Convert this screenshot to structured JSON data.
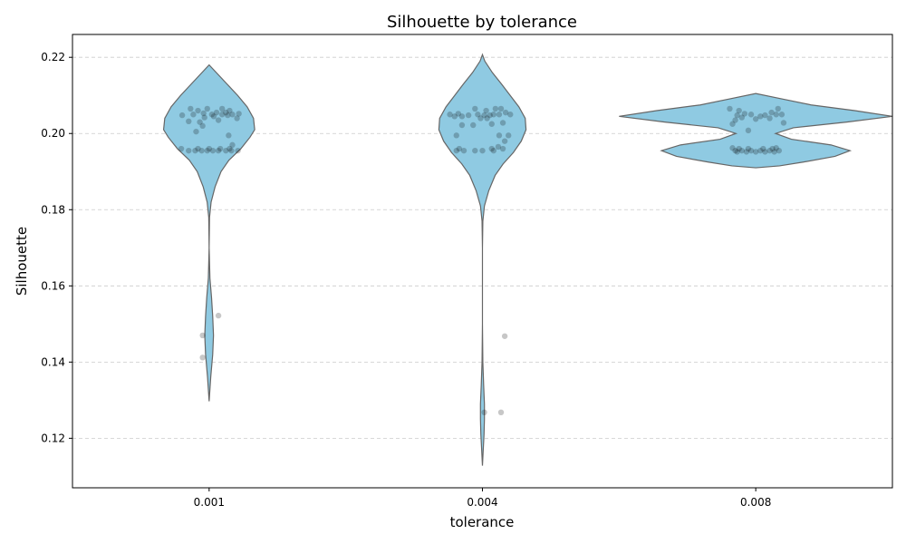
{
  "chart_data": {
    "type": "violin",
    "title": "Silhouette by tolerance",
    "xlabel": "tolerance",
    "ylabel": "Silhouette",
    "categories": [
      "0.001",
      "0.004",
      "0.008"
    ],
    "ylim": [
      0.107,
      0.226
    ],
    "yticks": [
      0.12,
      0.14,
      0.16,
      0.18,
      0.2,
      0.22
    ],
    "ytick_labels": [
      "0.12",
      "0.14",
      "0.16",
      "0.18",
      "0.20",
      "0.22"
    ],
    "grid": "y-dashed",
    "colors": {
      "violin_fill": "#8fcae2",
      "violin_edge": "#666666",
      "points": "#000000"
    },
    "violins": [
      {
        "category": "0.001",
        "profile": [
          [
            0.1297,
            0.0
          ],
          [
            0.136,
            0.004
          ],
          [
            0.142,
            0.009
          ],
          [
            0.147,
            0.011
          ],
          [
            0.152,
            0.009
          ],
          [
            0.157,
            0.006
          ],
          [
            0.162,
            0.002
          ],
          [
            0.17,
            0.0
          ],
          [
            0.178,
            0.001
          ],
          [
            0.182,
            0.005
          ],
          [
            0.186,
            0.015
          ],
          [
            0.19,
            0.03
          ],
          [
            0.193,
            0.05
          ],
          [
            0.196,
            0.08
          ],
          [
            0.199,
            0.103
          ],
          [
            0.201,
            0.115
          ],
          [
            0.204,
            0.112
          ],
          [
            0.207,
            0.096
          ],
          [
            0.21,
            0.072
          ],
          [
            0.213,
            0.045
          ],
          [
            0.216,
            0.018
          ],
          [
            0.218,
            0.0
          ]
        ],
        "points": [
          [
            0.1955,
            -0.22
          ],
          [
            0.1955,
            -0.15
          ],
          [
            0.1955,
            -0.08
          ],
          [
            0.1955,
            -0.02
          ],
          [
            0.1955,
            0.04
          ],
          [
            0.1955,
            0.1
          ],
          [
            0.1955,
            0.18
          ],
          [
            0.1955,
            0.24
          ],
          [
            0.1955,
            0.31
          ],
          [
            0.196,
            -0.3
          ],
          [
            0.196,
            -0.12
          ],
          [
            0.196,
            0.0
          ],
          [
            0.196,
            0.12
          ],
          [
            0.196,
            0.22
          ],
          [
            0.197,
            0.25
          ],
          [
            0.1995,
            0.21
          ],
          [
            0.2005,
            -0.14
          ],
          [
            0.202,
            -0.07
          ],
          [
            0.2032,
            -0.22
          ],
          [
            0.203,
            -0.1
          ],
          [
            0.2035,
            0.1
          ],
          [
            0.204,
            0.3
          ],
          [
            0.2042,
            -0.05
          ],
          [
            0.2045,
            0.05
          ],
          [
            0.2048,
            -0.29
          ],
          [
            0.2048,
            0.2
          ],
          [
            0.205,
            -0.17
          ],
          [
            0.205,
            0.03
          ],
          [
            0.205,
            0.14
          ],
          [
            0.205,
            0.25
          ],
          [
            0.2052,
            0.32
          ],
          [
            0.2053,
            -0.06
          ],
          [
            0.2055,
            0.18
          ],
          [
            0.2055,
            0.08
          ],
          [
            0.206,
            -0.12
          ],
          [
            0.206,
            0.22
          ],
          [
            0.2065,
            -0.02
          ],
          [
            0.2065,
            0.14
          ],
          [
            0.2065,
            -0.2
          ],
          [
            0.147,
            -0.07
          ],
          [
            0.1412,
            -0.07
          ],
          [
            0.1522,
            0.1
          ]
        ]
      },
      {
        "category": "0.004",
        "profile": [
          [
            0.1128,
            0.0
          ],
          [
            0.117,
            0.002
          ],
          [
            0.121,
            0.004
          ],
          [
            0.125,
            0.005
          ],
          [
            0.129,
            0.005
          ],
          [
            0.134,
            0.003
          ],
          [
            0.14,
            0.001
          ],
          [
            0.15,
            0.0
          ],
          [
            0.16,
            0.0
          ],
          [
            0.17,
            0.0
          ],
          [
            0.177,
            0.001
          ],
          [
            0.181,
            0.005
          ],
          [
            0.185,
            0.016
          ],
          [
            0.189,
            0.032
          ],
          [
            0.192,
            0.052
          ],
          [
            0.195,
            0.078
          ],
          [
            0.198,
            0.098
          ],
          [
            0.201,
            0.11
          ],
          [
            0.204,
            0.108
          ],
          [
            0.207,
            0.092
          ],
          [
            0.21,
            0.07
          ],
          [
            0.213,
            0.048
          ],
          [
            0.216,
            0.025
          ],
          [
            0.219,
            0.006
          ],
          [
            0.2207,
            0.0
          ]
        ],
        "points": [
          [
            0.1955,
            -0.28
          ],
          [
            0.1955,
            -0.2
          ],
          [
            0.1955,
            -0.08
          ],
          [
            0.1955,
            0.0
          ],
          [
            0.1955,
            0.12
          ],
          [
            0.196,
            -0.25
          ],
          [
            0.196,
            0.1
          ],
          [
            0.196,
            0.22
          ],
          [
            0.1965,
            0.17
          ],
          [
            0.198,
            0.24
          ],
          [
            0.1995,
            -0.28
          ],
          [
            0.1995,
            0.18
          ],
          [
            0.1995,
            0.28
          ],
          [
            0.2022,
            -0.22
          ],
          [
            0.2022,
            -0.1
          ],
          [
            0.2025,
            0.1
          ],
          [
            0.2028,
            0.22
          ],
          [
            0.204,
            -0.02
          ],
          [
            0.204,
            0.05
          ],
          [
            0.2045,
            -0.3
          ],
          [
            0.2045,
            -0.22
          ],
          [
            0.2048,
            -0.15
          ],
          [
            0.2048,
            0.02
          ],
          [
            0.2048,
            0.08
          ],
          [
            0.205,
            -0.35
          ],
          [
            0.205,
            -0.05
          ],
          [
            0.205,
            0.12
          ],
          [
            0.205,
            0.18
          ],
          [
            0.205,
            0.3
          ],
          [
            0.2052,
            -0.26
          ],
          [
            0.2055,
            0.25
          ],
          [
            0.206,
            0.04
          ],
          [
            0.2065,
            0.14
          ],
          [
            0.2065,
            -0.08
          ],
          [
            0.2065,
            0.2
          ],
          [
            0.1268,
            0.2
          ],
          [
            0.1268,
            0.02
          ],
          [
            0.1468,
            0.24
          ]
        ]
      },
      {
        "category": "0.008",
        "profile": [
          [
            0.191,
            0.0
          ],
          [
            0.1915,
            0.06
          ],
          [
            0.1925,
            0.12
          ],
          [
            0.194,
            0.2
          ],
          [
            0.1955,
            0.238
          ],
          [
            0.197,
            0.19
          ],
          [
            0.1985,
            0.09
          ],
          [
            0.2,
            0.05
          ],
          [
            0.2015,
            0.095
          ],
          [
            0.203,
            0.23
          ],
          [
            0.2045,
            0.345
          ],
          [
            0.206,
            0.25
          ],
          [
            0.2075,
            0.14
          ],
          [
            0.209,
            0.07
          ],
          [
            0.2105,
            0.0
          ]
        ],
        "points": [
          [
            0.1952,
            -0.2
          ],
          [
            0.1952,
            -0.1
          ],
          [
            0.1952,
            0.0
          ],
          [
            0.1952,
            0.1
          ],
          [
            0.1952,
            0.2
          ],
          [
            0.1955,
            -0.22
          ],
          [
            0.1955,
            -0.15
          ],
          [
            0.1955,
            -0.05
          ],
          [
            0.1955,
            0.05
          ],
          [
            0.1955,
            0.15
          ],
          [
            0.1955,
            0.25
          ],
          [
            0.196,
            -0.18
          ],
          [
            0.196,
            -0.08
          ],
          [
            0.196,
            0.08
          ],
          [
            0.196,
            0.18
          ],
          [
            0.1962,
            -0.25
          ],
          [
            0.1962,
            0.22
          ],
          [
            0.2008,
            -0.08
          ],
          [
            0.2025,
            -0.25
          ],
          [
            0.2028,
            0.3
          ],
          [
            0.2035,
            -0.22
          ],
          [
            0.2038,
            0.0
          ],
          [
            0.204,
            0.15
          ],
          [
            0.2042,
            -0.15
          ],
          [
            0.2045,
            0.05
          ],
          [
            0.2048,
            -0.2
          ],
          [
            0.2048,
            0.1
          ],
          [
            0.205,
            -0.05
          ],
          [
            0.205,
            0.22
          ],
          [
            0.205,
            0.28
          ],
          [
            0.2052,
            -0.12
          ],
          [
            0.2055,
            0.17
          ],
          [
            0.206,
            -0.18
          ],
          [
            0.2065,
            -0.28
          ],
          [
            0.2065,
            0.24
          ]
        ]
      }
    ]
  }
}
